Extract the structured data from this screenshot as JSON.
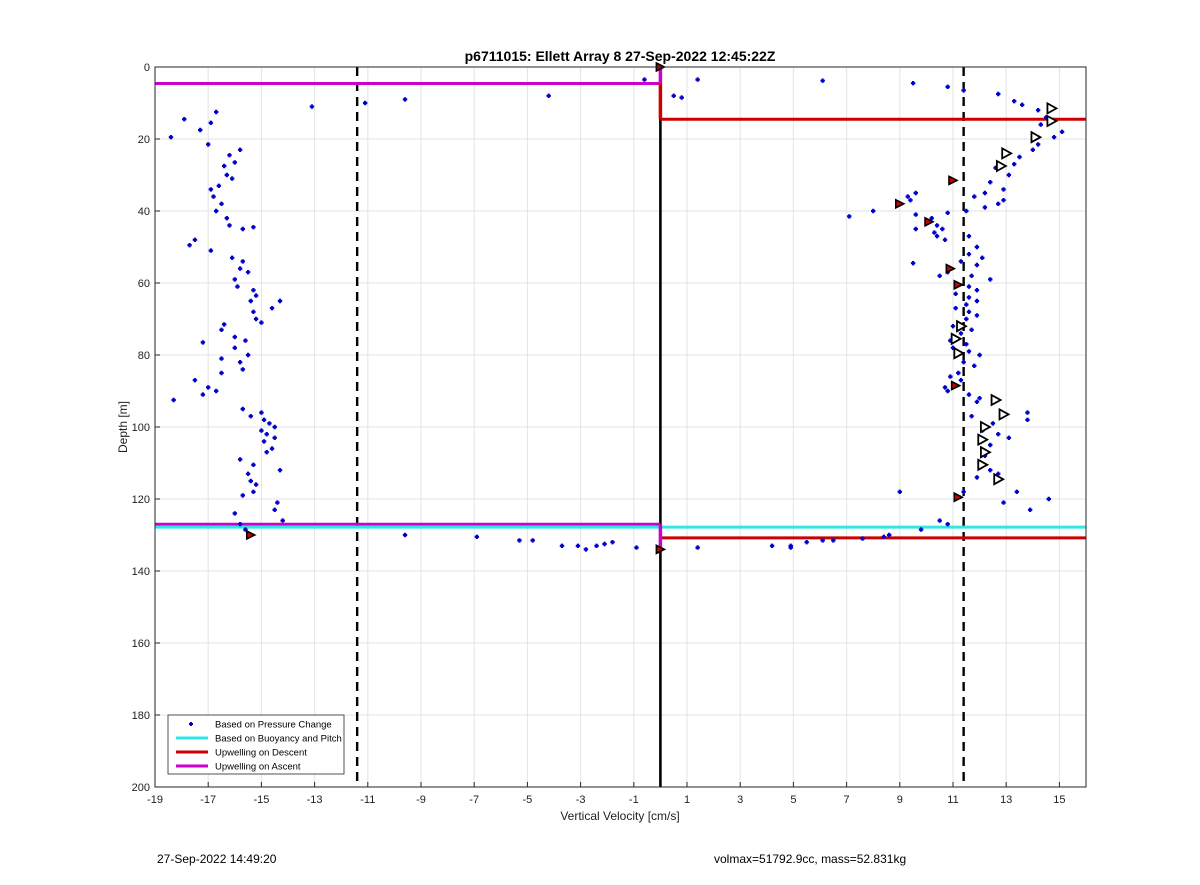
{
  "chart_data": {
    "type": "scatter",
    "title": "p6711015: Ellett Array 8 27-Sep-2022 12:45:22Z",
    "xlabel": "Vertical Velocity [cm/s]",
    "ylabel": "Depth [m]",
    "xlim": [
      -19,
      16
    ],
    "ylim": [
      0,
      200
    ],
    "y_reversed": true,
    "grid": true,
    "xticks": [
      -19,
      -17,
      -15,
      -13,
      -11,
      -9,
      -7,
      -5,
      -3,
      -1,
      1,
      3,
      5,
      7,
      9,
      11,
      13,
      15
    ],
    "yticks": [
      0,
      20,
      40,
      60,
      80,
      100,
      120,
      140,
      160,
      180,
      200
    ],
    "legend_position": "bottom-left",
    "legend": [
      {
        "label": "Based on Pressure Change",
        "color": "#0000cc",
        "style": "dot"
      },
      {
        "label": "Based on Buoyancy and Pitch",
        "color": "#33e6e6",
        "style": "line"
      },
      {
        "label": "Upwelling on Descent",
        "color": "#cc0000",
        "style": "line"
      },
      {
        "label": "Upwelling on Ascent",
        "color": "#cc00cc",
        "style": "line"
      }
    ],
    "reference_lines": {
      "vertical_dashed": [
        -11.4,
        11.4
      ],
      "vertical_solid": [
        0
      ]
    },
    "pressure_change_points": [
      [
        -18.4,
        19.5
      ],
      [
        -17.9,
        14.5
      ],
      [
        -17.3,
        17.5
      ],
      [
        -16.7,
        12.5
      ],
      [
        -16.9,
        15.5
      ],
      [
        -17.0,
        21.5
      ],
      [
        -16.2,
        24.5
      ],
      [
        -15.8,
        23
      ],
      [
        -16.0,
        26.5
      ],
      [
        -16.4,
        27.5
      ],
      [
        -16.3,
        30
      ],
      [
        -16.1,
        31
      ],
      [
        -16.6,
        33
      ],
      [
        -16.9,
        34
      ],
      [
        -16.8,
        36
      ],
      [
        -16.5,
        38
      ],
      [
        -16.7,
        40
      ],
      [
        -16.3,
        42
      ],
      [
        -16.2,
        44
      ],
      [
        -15.7,
        45
      ],
      [
        -15.3,
        44.5
      ],
      [
        -17.5,
        48
      ],
      [
        -17.7,
        49.5
      ],
      [
        -16.9,
        51
      ],
      [
        -16.1,
        53
      ],
      [
        -15.7,
        54
      ],
      [
        -15.8,
        56
      ],
      [
        -15.5,
        57
      ],
      [
        -16.0,
        59
      ],
      [
        -15.9,
        61
      ],
      [
        -15.3,
        62
      ],
      [
        -15.2,
        63.5
      ],
      [
        -15.4,
        65
      ],
      [
        -14.3,
        65
      ],
      [
        -14.6,
        67
      ],
      [
        -15.3,
        68
      ],
      [
        -15.2,
        70
      ],
      [
        -15.0,
        71
      ],
      [
        -16.4,
        71.5
      ],
      [
        -16.5,
        73
      ],
      [
        -16.0,
        75
      ],
      [
        -15.6,
        76
      ],
      [
        -17.2,
        76.5
      ],
      [
        -16.0,
        78
      ],
      [
        -15.5,
        80
      ],
      [
        -16.5,
        81
      ],
      [
        -15.8,
        82
      ],
      [
        -15.7,
        84
      ],
      [
        -16.5,
        85
      ],
      [
        -17.5,
        87
      ],
      [
        -17.0,
        89
      ],
      [
        -16.7,
        90
      ],
      [
        -17.2,
        91
      ],
      [
        -18.3,
        92.5
      ],
      [
        -15.7,
        95
      ],
      [
        -15.0,
        96
      ],
      [
        -15.4,
        97
      ],
      [
        -14.9,
        98
      ],
      [
        -14.7,
        99
      ],
      [
        -14.5,
        100
      ],
      [
        -15.0,
        101
      ],
      [
        -14.8,
        102
      ],
      [
        -14.5,
        103
      ],
      [
        -14.9,
        104
      ],
      [
        -14.6,
        106
      ],
      [
        -14.8,
        107
      ],
      [
        -15.8,
        109
      ],
      [
        -15.3,
        110.5
      ],
      [
        -14.3,
        112
      ],
      [
        -15.5,
        113
      ],
      [
        -15.4,
        115
      ],
      [
        -15.2,
        116
      ],
      [
        -15.3,
        118
      ],
      [
        -15.7,
        119
      ],
      [
        -14.4,
        121
      ],
      [
        -14.5,
        123
      ],
      [
        -16.0,
        124
      ],
      [
        -14.2,
        126
      ],
      [
        -15.8,
        127
      ],
      [
        -15.6,
        128.5
      ],
      [
        -13.1,
        11
      ],
      [
        -11.1,
        10
      ],
      [
        -9.6,
        9
      ],
      [
        -4.2,
        8
      ],
      [
        -0.6,
        3.5
      ],
      [
        0.5,
        8
      ],
      [
        0.8,
        8.5
      ],
      [
        1.4,
        3.5
      ],
      [
        6.1,
        3.8
      ],
      [
        9.5,
        4.5
      ],
      [
        10.8,
        5.5
      ],
      [
        11.4,
        6.5
      ],
      [
        12.7,
        7.5
      ],
      [
        13.3,
        9.5
      ],
      [
        13.6,
        10.5
      ],
      [
        14.2,
        12
      ],
      [
        14.5,
        14
      ],
      [
        14.3,
        16
      ],
      [
        15.1,
        18
      ],
      [
        14.8,
        19.5
      ],
      [
        14.2,
        21.5
      ],
      [
        14.0,
        23
      ],
      [
        13.5,
        25
      ],
      [
        13.3,
        27
      ],
      [
        12.6,
        28
      ],
      [
        13.1,
        30
      ],
      [
        12.4,
        32
      ],
      [
        12.9,
        34
      ],
      [
        12.2,
        35
      ],
      [
        11.8,
        36
      ],
      [
        12.9,
        37
      ],
      [
        12.7,
        38
      ],
      [
        12.2,
        39
      ],
      [
        11.5,
        40
      ],
      [
        10.8,
        40.5
      ],
      [
        9.6,
        35
      ],
      [
        9.3,
        36
      ],
      [
        9.4,
        37
      ],
      [
        8.0,
        40
      ],
      [
        7.1,
        41.5
      ],
      [
        9.6,
        41
      ],
      [
        10.2,
        42
      ],
      [
        10.4,
        44
      ],
      [
        9.6,
        45
      ],
      [
        10.6,
        45
      ],
      [
        10.3,
        46
      ],
      [
        10.4,
        47
      ],
      [
        10.7,
        48
      ],
      [
        11.6,
        47
      ],
      [
        11.9,
        50
      ],
      [
        11.6,
        52
      ],
      [
        12.1,
        53
      ],
      [
        11.3,
        54
      ],
      [
        9.5,
        54.5
      ],
      [
        11.9,
        55
      ],
      [
        10.8,
        57
      ],
      [
        10.5,
        58
      ],
      [
        11.7,
        58
      ],
      [
        12.4,
        59
      ],
      [
        11.6,
        61
      ],
      [
        11.9,
        62
      ],
      [
        11.1,
        63
      ],
      [
        11.6,
        64
      ],
      [
        11.9,
        65
      ],
      [
        11.5,
        66
      ],
      [
        11.1,
        67
      ],
      [
        11.6,
        68
      ],
      [
        11.9,
        69
      ],
      [
        11.5,
        70
      ],
      [
        11.0,
        72
      ],
      [
        11.7,
        73
      ],
      [
        11.3,
        74
      ],
      [
        10.9,
        76
      ],
      [
        11.5,
        77
      ],
      [
        11.0,
        78
      ],
      [
        11.6,
        79
      ],
      [
        12.0,
        80
      ],
      [
        11.4,
        82
      ],
      [
        11.8,
        83
      ],
      [
        11.2,
        85
      ],
      [
        10.9,
        86
      ],
      [
        11.3,
        87
      ],
      [
        10.8,
        90
      ],
      [
        10.7,
        89
      ],
      [
        11.6,
        91
      ],
      [
        12.0,
        92
      ],
      [
        11.9,
        93
      ],
      [
        11.7,
        97
      ],
      [
        12.5,
        99
      ],
      [
        12.1,
        101
      ],
      [
        12.7,
        102
      ],
      [
        13.1,
        103
      ],
      [
        12.4,
        105
      ],
      [
        12.2,
        108
      ],
      [
        12.0,
        110
      ],
      [
        12.4,
        112
      ],
      [
        12.7,
        113
      ],
      [
        11.9,
        114
      ],
      [
        13.8,
        96
      ],
      [
        13.8,
        98
      ],
      [
        13.4,
        118
      ],
      [
        12.9,
        121
      ],
      [
        13.9,
        123
      ],
      [
        14.6,
        120
      ],
      [
        11.4,
        118
      ],
      [
        9.0,
        118
      ],
      [
        10.5,
        126
      ],
      [
        10.8,
        127
      ],
      [
        9.8,
        128.5
      ],
      [
        8.6,
        130
      ],
      [
        8.4,
        130.5
      ],
      [
        7.6,
        131
      ],
      [
        6.5,
        131.5
      ],
      [
        6.1,
        131.5
      ],
      [
        5.5,
        132
      ],
      [
        4.9,
        133
      ],
      [
        4.9,
        133.5
      ],
      [
        4.2,
        133
      ],
      [
        1.4,
        133.5
      ],
      [
        -0.9,
        133.5
      ],
      [
        -1.8,
        132
      ],
      [
        -2.1,
        132.5
      ],
      [
        -2.4,
        133
      ],
      [
        -2.8,
        134
      ],
      [
        -3.1,
        133
      ],
      [
        -3.7,
        133
      ],
      [
        -4.8,
        131.5
      ],
      [
        -5.3,
        131.5
      ],
      [
        -6.9,
        130.5
      ],
      [
        -9.6,
        130
      ]
    ],
    "red_filled_markers": [
      [
        0.0,
        0
      ],
      [
        11.0,
        31.5
      ],
      [
        9.0,
        38
      ],
      [
        10.1,
        43
      ],
      [
        10.9,
        56
      ],
      [
        11.2,
        60.5
      ],
      [
        11.1,
        88.5
      ],
      [
        11.2,
        119.5
      ],
      [
        0.0,
        134
      ],
      [
        -15.4,
        130
      ]
    ],
    "open_triangle_markers": [
      [
        14.7,
        11.5
      ],
      [
        14.7,
        15
      ],
      [
        14.1,
        19.5
      ],
      [
        13.0,
        24
      ],
      [
        12.8,
        27.5
      ],
      [
        11.3,
        72
      ],
      [
        11.1,
        75.5
      ],
      [
        11.2,
        79.5
      ],
      [
        12.6,
        92.5
      ],
      [
        12.9,
        96.5
      ],
      [
        12.2,
        100
      ],
      [
        12.1,
        103.5
      ],
      [
        12.2,
        107
      ],
      [
        12.1,
        110.5
      ],
      [
        12.7,
        114.5
      ]
    ],
    "horizontal_lines": [
      {
        "name": "Upwelling on Ascent",
        "color": "#cc00cc",
        "y": 4.6,
        "x": [
          -19,
          0
        ]
      },
      {
        "name": "Upwelling on Descent",
        "color": "#cc0000",
        "y": 14.5,
        "x": [
          0,
          16
        ]
      },
      {
        "name": "Upwelling on Ascent",
        "color": "#cc00cc",
        "y": 127.0,
        "x": [
          -19,
          0
        ]
      },
      {
        "name": "Based on Buoyancy and Pitch",
        "color": "#33e6e6",
        "y": 127.8,
        "x": [
          -19,
          0
        ]
      },
      {
        "name": "Based on Buoyancy and Pitch",
        "color": "#33e6e6",
        "y": 127.8,
        "x": [
          0,
          16
        ]
      },
      {
        "name": "Upwelling on Descent",
        "color": "#cc0000",
        "y": 130.8,
        "x": [
          0,
          16
        ]
      }
    ],
    "vertical_segments": [
      {
        "color": "#cc00cc",
        "x": 0,
        "y": [
          0,
          4.6
        ]
      },
      {
        "color": "#cc0000",
        "x": 0,
        "y": [
          4.6,
          14.5
        ]
      },
      {
        "color": "#cc00cc",
        "x": 0,
        "y": [
          127.0,
          134
        ]
      }
    ]
  },
  "footer": {
    "timestamp": "27-Sep-2022 14:49:20",
    "stats": "volmax=51792.9cc, mass=52.831kg"
  }
}
